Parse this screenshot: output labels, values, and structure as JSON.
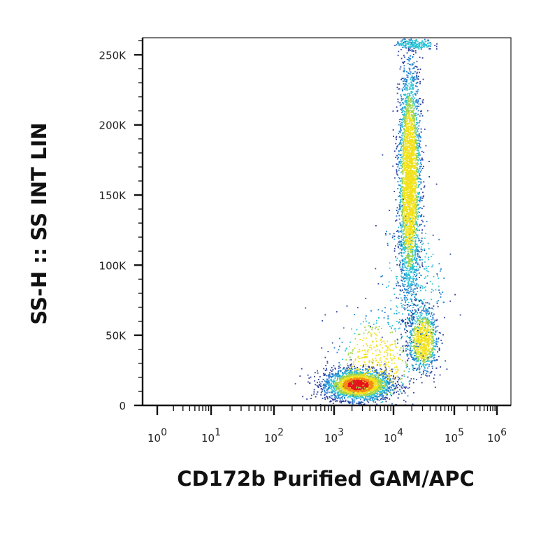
{
  "chart_data": {
    "type": "scatter",
    "title": "",
    "xlabel": "CD172b Purified GAM/APC",
    "ylabel": "SS-H :: SS INT LIN",
    "x_scale": "biexponential-log",
    "xlim": [
      0,
      1500000
    ],
    "ylim": [
      0,
      262144
    ],
    "grid": false,
    "legend": "none",
    "x_ticks": [
      {
        "base": "10",
        "exp": "0",
        "value": 1
      },
      {
        "base": "10",
        "exp": "1",
        "value": 10
      },
      {
        "base": "10",
        "exp": "2",
        "value": 100
      },
      {
        "base": "10",
        "exp": "3",
        "value": 1000
      },
      {
        "base": "10",
        "exp": "4",
        "value": 10000
      },
      {
        "base": "10",
        "exp": "5",
        "value": 100000
      },
      {
        "base": "10",
        "exp": "6",
        "value": 1000000
      }
    ],
    "y_ticks": [
      {
        "label": "0",
        "value": 0
      },
      {
        "label": "50K",
        "value": 50000
      },
      {
        "label": "100K",
        "value": 100000
      },
      {
        "label": "150K",
        "value": 150000
      },
      {
        "label": "200K",
        "value": 200000
      },
      {
        "label": "250K",
        "value": 250000
      }
    ],
    "density_colors": [
      "#2b3f9e",
      "#1f7fd0",
      "#2ec4d6",
      "#9fd44a",
      "#f2e21c",
      "#f48a14",
      "#e3141b"
    ],
    "populations": [
      {
        "center_x": 2500,
        "center_y": 15000,
        "spread_x_decades": 0.28,
        "spread_y": 5500,
        "tilt": 0,
        "events": 2600
      },
      {
        "center_x": 18000,
        "center_y": 160000,
        "spread_x_decades": 0.09,
        "spread_y": 42000,
        "tilt": 0,
        "events": 3200
      },
      {
        "center_x": 30000,
        "center_y": 47000,
        "spread_x_decades": 0.12,
        "spread_y": 11000,
        "tilt": 0,
        "events": 900
      },
      {
        "center_x": 5000,
        "center_y": 32000,
        "spread_x_decades": 0.35,
        "spread_y": 18000,
        "tilt": 0,
        "events": 500
      },
      {
        "center_x": 20000,
        "center_y": 90000,
        "spread_x_decades": 0.25,
        "spread_y": 25000,
        "tilt": 0,
        "events": 300
      },
      {
        "center_x": 22000,
        "center_y": 258000,
        "spread_x_decades": 0.15,
        "spread_y": 2000,
        "tilt": 0,
        "events": 200
      }
    ]
  }
}
